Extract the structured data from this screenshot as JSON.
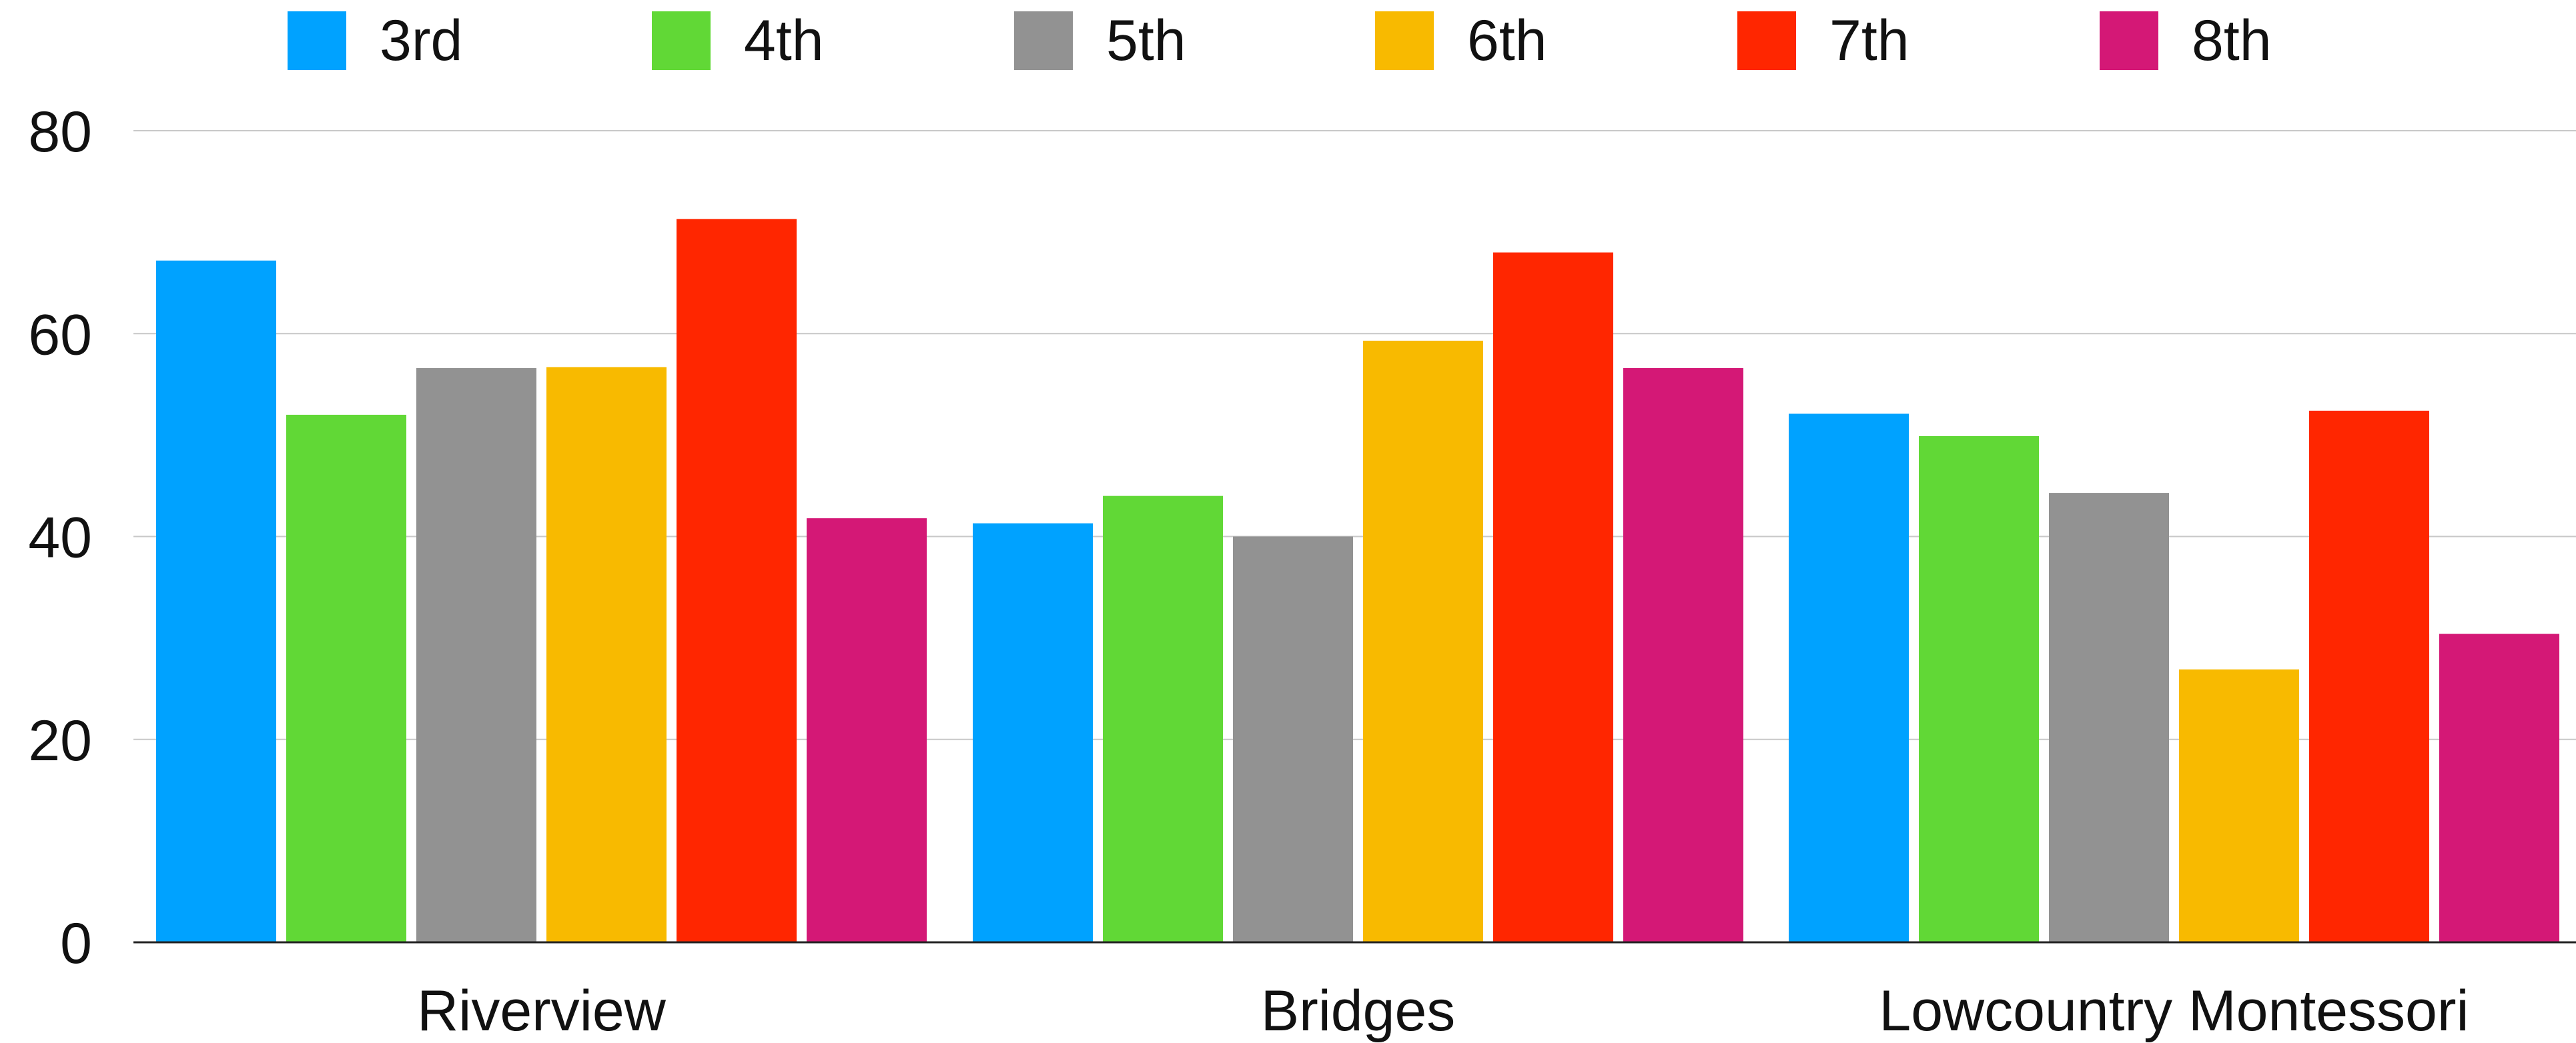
{
  "chart_data": {
    "type": "bar",
    "title": "",
    "xlabel": "",
    "ylabel": "",
    "categories": [
      "Riverview",
      "Bridges",
      "Lowcountry Montessori"
    ],
    "ylim": [
      0,
      80
    ],
    "yticks": [
      0,
      20,
      40,
      60,
      80
    ],
    "grid": true,
    "legend_position": "top",
    "series": [
      {
        "name": "3rd",
        "color": "#00a2ff",
        "values": [
          67.2,
          41.3,
          52.1
        ]
      },
      {
        "name": "4th",
        "color": "#61d836",
        "values": [
          52.0,
          44.0,
          49.9
        ]
      },
      {
        "name": "5th",
        "color": "#929292",
        "values": [
          56.6,
          40.0,
          44.3
        ]
      },
      {
        "name": "6th",
        "color": "#f8ba00",
        "values": [
          56.7,
          59.3,
          26.9
        ]
      },
      {
        "name": "7th",
        "color": "#ff2600",
        "values": [
          71.3,
          68.0,
          52.4
        ]
      },
      {
        "name": "8th",
        "color": "#d41876",
        "values": [
          41.8,
          56.6,
          30.4
        ]
      }
    ]
  }
}
